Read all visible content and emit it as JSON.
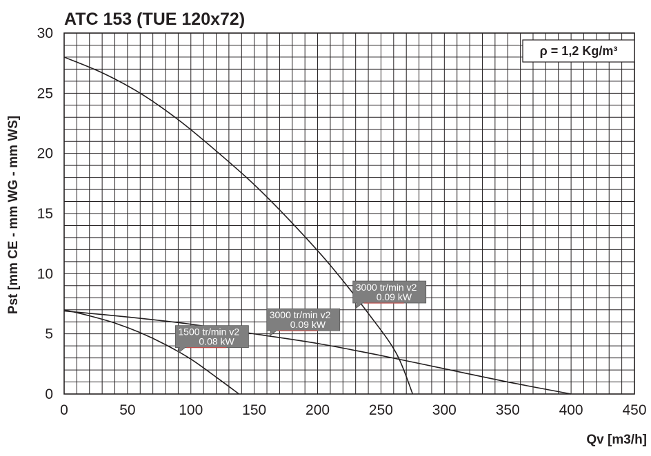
{
  "chart_data": {
    "type": "line",
    "title": "ATC 153 (TUE 120x72)",
    "xlabel": "Qv [m3/h]",
    "ylabel": "Pst [mm CE - mm WG - mm WS]",
    "density_note": "ρ = 1,2 Kg/m³",
    "xlim": [
      0,
      450
    ],
    "ylim": [
      0,
      30
    ],
    "grid": true,
    "x_ticks": [
      0,
      50,
      100,
      150,
      200,
      250,
      300,
      350,
      400,
      450
    ],
    "y_ticks": [
      0,
      5,
      10,
      15,
      20,
      25,
      30
    ],
    "minor_grid_step_x": 10,
    "minor_grid_step_y": 1,
    "series": [
      {
        "x": [
          0,
          30,
          60,
          90,
          120,
          150,
          180,
          210,
          240,
          262,
          275
        ],
        "y": [
          28,
          26.7,
          25.0,
          22.8,
          20.2,
          17.4,
          14.2,
          10.7,
          6.7,
          3.4,
          0
        ]
      },
      {
        "x": [
          0,
          50,
          100,
          150,
          200,
          250,
          300,
          350,
          400
        ],
        "y": [
          6.9,
          6.4,
          5.8,
          5.0,
          4.2,
          3.2,
          2.1,
          1.0,
          0
        ]
      },
      {
        "x": [
          0,
          20,
          40,
          60,
          80,
          100,
          120,
          138
        ],
        "y": [
          7.0,
          6.5,
          5.9,
          5.1,
          4.1,
          2.9,
          1.4,
          0
        ]
      }
    ],
    "annotations": [
      {
        "line1": "3000 tr/min v2",
        "line2": "0.09 kW",
        "x": 230,
        "y": 7.1,
        "series_index": 0
      },
      {
        "line1": "3000 tr/min v2",
        "line2": "0.09 kW",
        "x": 162,
        "y": 4.8,
        "series_index": 1
      },
      {
        "line1": "1500 tr/min v2",
        "line2": "0.08 kW",
        "x": 90,
        "y": 3.4,
        "series_index": 2
      }
    ],
    "colors": {
      "line": "#231f20",
      "grid": "#231f20",
      "label_box": "#7f7f7f",
      "label_text": "#ffffff",
      "label_underline": "#c0504d"
    }
  }
}
